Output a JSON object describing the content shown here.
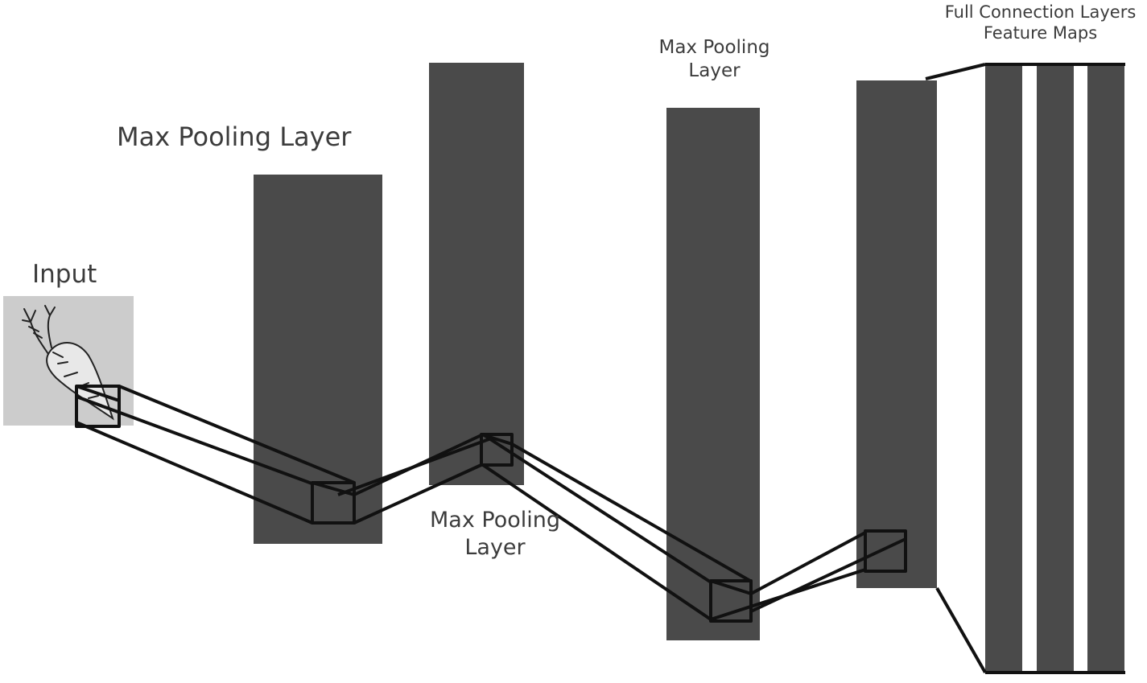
{
  "labels": {
    "input": "Input",
    "pool1": "Max Pooling Layer",
    "pool2_line1": "Max Pooling",
    "pool2_line2": "Layer",
    "pool3_line1": "Max Pooling",
    "pool3_line2": "Layer",
    "fc_line1": "Full Connection Layers",
    "fc_line2": "Feature Maps"
  },
  "icons": {
    "input_image": "carrot-icon"
  },
  "colors": {
    "layer_fill": "#4a4a4a",
    "input_fill": "#cccccc",
    "connector": "#111111",
    "text": "#3c3c3c"
  }
}
